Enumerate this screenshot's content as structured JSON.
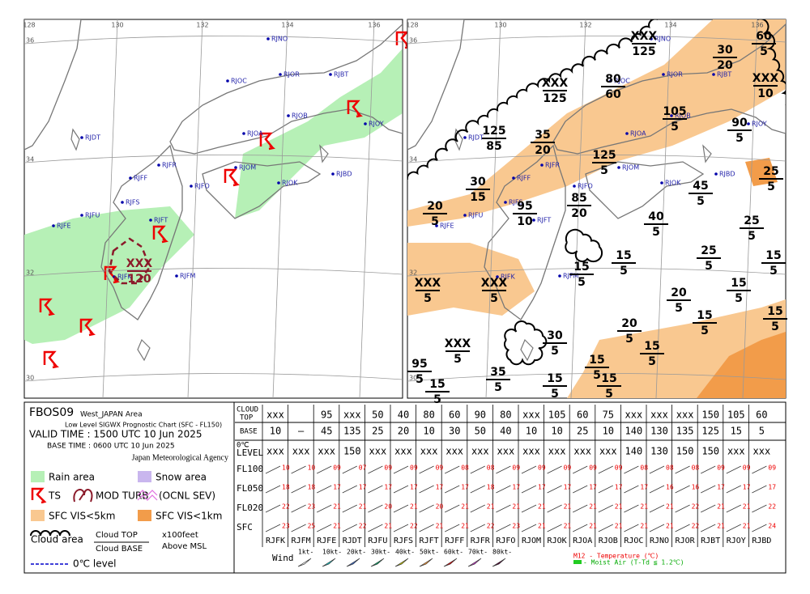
{
  "header": {
    "code": "FBOS09",
    "area": "West_JAPAN Area",
    "chart_name": "Low Level SIGWX Prognostic Chart (SFC - FL150)",
    "valid_time": "VALID TIME : 1500 UTC 10 Jun 2025",
    "base_time": "BASE TIME : 0600 UTC 10 Jun 2025",
    "agency": "Japan Meteorological Agency"
  },
  "legend": {
    "rain": "Rain area",
    "snow": "Snow area",
    "ts": "TS",
    "turb": "MOD TURB",
    "turb_sev": "(OCNL SEV)",
    "vis5": "SFC VIS<5km",
    "vis1": "SFC VIS<1km",
    "cloud_area": "Cloud area",
    "cloud_top": "Cloud TOP",
    "cloud_base": "Cloud BASE",
    "unit": "x100feet",
    "msl": "Above MSL",
    "freezing": "0℃ level"
  },
  "map": {
    "lat_labels": [
      36,
      34,
      32,
      30
    ],
    "lon_labels": [
      128,
      130,
      132,
      134,
      136
    ],
    "stations": [
      "RJNO",
      "RJOC",
      "RJOR",
      "RJBT",
      "RJDT",
      "RJOB",
      "RJOY",
      "RJOA",
      "RJFR",
      "RJOM",
      "RJBD",
      "RJFF",
      "RJFO",
      "RJOK",
      "RJFS",
      "RJFU",
      "RJFT",
      "RJFE",
      "RJFK",
      "RJFM"
    ],
    "left_clouds": [
      {
        "top": "XXX",
        "base": 120
      }
    ],
    "right_clouds": [
      {
        "top": "XXX",
        "base": 125
      },
      {
        "top": 60,
        "base": 5
      },
      {
        "top": 30,
        "base": 20
      },
      {
        "top": "XXX",
        "base": 125
      },
      {
        "top": 80,
        "base": 60
      },
      {
        "top": "XXX",
        "base": 10
      },
      {
        "top": 105,
        "base": 5
      },
      {
        "top": 90,
        "base": 5
      },
      {
        "top": 125,
        "base": 85
      },
      {
        "top": 35,
        "base": 20
      },
      {
        "top": 125,
        "base": 5
      },
      {
        "top": 25,
        "base": 5
      },
      {
        "top": 30,
        "base": 15
      },
      {
        "top": 45,
        "base": 5
      },
      {
        "top": 85,
        "base": 20
      },
      {
        "top": 20,
        "base": 5
      },
      {
        "top": 95,
        "base": 10
      },
      {
        "top": 40,
        "base": 5
      },
      {
        "top": 25,
        "base": 5
      },
      {
        "top": 25,
        "base": 5
      },
      {
        "top": 15,
        "base": 5
      },
      {
        "top": 15,
        "base": 5
      },
      {
        "top": 15,
        "base": 5
      },
      {
        "top": "XXX",
        "base": 5
      },
      {
        "top": "XXX",
        "base": 5
      },
      {
        "top": 15,
        "base": 5
      },
      {
        "top": 20,
        "base": 5
      },
      {
        "top": 15,
        "base": 5
      },
      {
        "top": 15,
        "base": 5
      },
      {
        "top": 20,
        "base": 5
      },
      {
        "top": 30,
        "base": 5
      },
      {
        "top": "XXX",
        "base": 5
      },
      {
        "top": 15,
        "base": 5
      },
      {
        "top": 15,
        "base": 5
      },
      {
        "top": 35,
        "base": 5
      },
      {
        "top": 15,
        "base": 5
      },
      {
        "top": 95,
        "base": 5
      },
      {
        "top": 15,
        "base": 5
      },
      {
        "top": 15,
        "base": 5
      }
    ]
  },
  "table": {
    "row_labels": {
      "cloud": "CLOUD",
      "top": "TOP",
      "base": "BASE",
      "zero": "0℃",
      "level": "LEVEL",
      "fl100": "FL100",
      "fl050": "FL050",
      "fl020": "FL020",
      "sfc": "SFC"
    },
    "stations": [
      "RJFK",
      "RJFM",
      "RJFE",
      "RJDT",
      "RJFU",
      "RJFS",
      "RJFT",
      "RJFF",
      "RJFR",
      "RJFO",
      "RJOM",
      "RJOK",
      "RJOA",
      "RJOB",
      "RJOC",
      "RJNO",
      "RJOR",
      "RJBT",
      "RJOY",
      "RJBD"
    ],
    "cloud_top": [
      "xxx",
      null,
      95,
      "xxx",
      50,
      40,
      80,
      60,
      90,
      80,
      "xxx",
      105,
      60,
      75,
      "xxx",
      "xxx",
      "xxx",
      150,
      105,
      60
    ],
    "cloud_base": [
      10,
      "–",
      45,
      135,
      25,
      20,
      10,
      30,
      50,
      40,
      10,
      10,
      25,
      10,
      140,
      130,
      135,
      125,
      15,
      5
    ],
    "zero_level": [
      "xxx",
      "xxx",
      "xxx",
      150,
      "xxx",
      "xxx",
      "xxx",
      "xxx",
      "xxx",
      "xxx",
      "xxx",
      "xxx",
      "xxx",
      "xxx",
      140,
      130,
      150,
      150,
      "xxx",
      "xxx"
    ],
    "fl100": [
      10,
      10,
      "09",
      "07",
      "09",
      "09",
      "09",
      "08",
      "08",
      "09",
      "09",
      "09",
      "09",
      "09",
      "08",
      "08",
      "08",
      "09",
      "09",
      "09"
    ],
    "fl050": [
      18,
      18,
      17,
      17,
      17,
      17,
      17,
      17,
      18,
      17,
      17,
      17,
      17,
      17,
      17,
      16,
      16,
      17,
      17,
      17
    ],
    "fl020": [
      22,
      23,
      21,
      21,
      20,
      21,
      20,
      21,
      21,
      21,
      21,
      21,
      21,
      21,
      21,
      21,
      22,
      21,
      21,
      22
    ],
    "sfc": [
      23,
      25,
      21,
      22,
      21,
      22,
      21,
      21,
      22,
      23,
      21,
      21,
      21,
      21,
      21,
      21,
      22,
      21,
      21,
      24
    ]
  },
  "wind_legend": {
    "title": "Wind",
    "speeds": [
      "1kt-",
      "10kt-",
      "20kt-",
      "30kt-",
      "40kt-",
      "50kt-",
      "60kt-",
      "70kt-",
      "80kt-"
    ]
  },
  "notes": {
    "temp": "M12 - Temperature (℃)",
    "moist": "- Moist Air (T-Td ≦ 1.2℃)"
  }
}
